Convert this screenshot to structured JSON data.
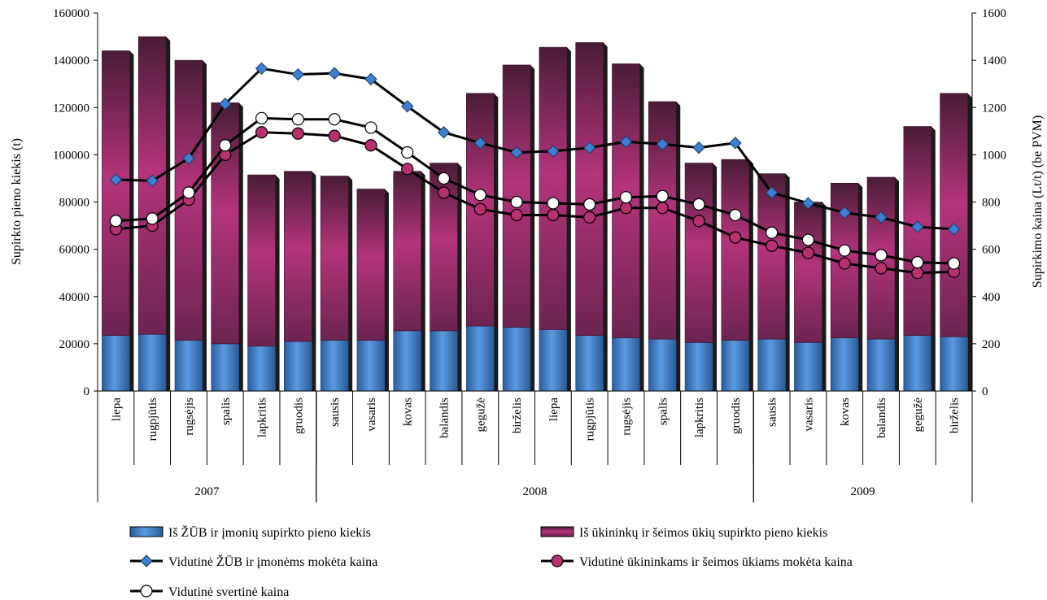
{
  "chart_data": {
    "type": "bar",
    "stacked": true,
    "categories": [
      "liepa",
      "rugpjūtis",
      "rugsėjis",
      "spalis",
      "lapkritis",
      "gruodis",
      "sausis",
      "vasaris",
      "kovas",
      "balandis",
      "gegužė",
      "birželis",
      "liepa",
      "rugpjūtis",
      "rugsėjis",
      "spalis",
      "lapkritis",
      "gruodis",
      "sausis",
      "vasaris",
      "kovas",
      "balandis",
      "gegužė",
      "birželis"
    ],
    "year_groups": [
      {
        "label": "2007",
        "start": 0,
        "count": 6
      },
      {
        "label": "2008",
        "start": 6,
        "count": 12
      },
      {
        "label": "2009",
        "start": 18,
        "count": 6
      }
    ],
    "ylabel": "Supirkto pieno kiekis (t)",
    "y2label": "Supirkimo kaina (Lt/t) (be PVM)",
    "ylim": [
      0,
      160000
    ],
    "y2lim": [
      0,
      1600
    ],
    "yticks": [
      "0",
      "20000",
      "40000",
      "60000",
      "80000",
      "100000",
      "120000",
      "140000",
      "160000"
    ],
    "y2ticks": [
      "0",
      "200",
      "400",
      "600",
      "800",
      "1000",
      "1200",
      "1400",
      "1600"
    ],
    "bar_series": [
      {
        "name": "Iš ŽŪB ir įmonių supirkto pieno kiekis",
        "color": "#4f8fd8",
        "values": [
          23500,
          24000,
          21500,
          20000,
          19000,
          21000,
          21500,
          21500,
          25500,
          25500,
          27500,
          27000,
          26000,
          23500,
          22500,
          22000,
          20500,
          21500,
          22000,
          20500,
          22500,
          22000,
          23500,
          23000
        ]
      },
      {
        "name": "Iš ūkininkų ir šeimos ūkių supirkto pieno kiekis",
        "color": "#b83878",
        "values": [
          120500,
          126000,
          118500,
          102000,
          72500,
          72000,
          69500,
          64000,
          67500,
          71000,
          98500,
          111000,
          119500,
          124000,
          116000,
          100500,
          76000,
          76500,
          70000,
          59500,
          65500,
          68500,
          88500,
          103000
        ]
      }
    ],
    "line_series": [
      {
        "name": "Vidutinė ŽŪB ir įmonėms mokėta kaina",
        "marker": "diamond",
        "color": "#3d7fd0",
        "values": [
          895,
          890,
          985,
          1215,
          1365,
          1340,
          1345,
          1320,
          1205,
          1095,
          1050,
          1010,
          1015,
          1030,
          1055,
          1045,
          1030,
          1050,
          840,
          795,
          755,
          735,
          695,
          685
        ]
      },
      {
        "name": "Vidutinė ūkininkams ir šeimos ūkiams mokėta kaina",
        "marker": "circle",
        "color": "#b8306e",
        "values": [
          685,
          700,
          810,
          1000,
          1095,
          1090,
          1080,
          1040,
          940,
          840,
          770,
          745,
          745,
          735,
          775,
          775,
          720,
          650,
          615,
          585,
          540,
          520,
          500,
          505
        ]
      },
      {
        "name": "Vidutinė svertinė kaina",
        "marker": "circle-open",
        "color": "#ffffff",
        "values": [
          720,
          730,
          840,
          1040,
          1155,
          1150,
          1150,
          1115,
          1010,
          900,
          830,
          800,
          795,
          790,
          820,
          825,
          790,
          745,
          670,
          640,
          595,
          575,
          545,
          540
        ]
      }
    ],
    "legend_position": "bottom",
    "grid": false
  }
}
